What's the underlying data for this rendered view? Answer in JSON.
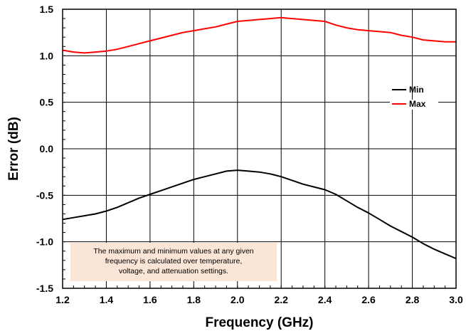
{
  "chart_data": {
    "type": "line",
    "xlabel": "Frequency (GHz)",
    "ylabel": "Error (dB)",
    "xlim": [
      1.2,
      3.0
    ],
    "ylim": [
      -1.5,
      1.5
    ],
    "xticks": [
      "1.2",
      "1.4",
      "1.6",
      "1.8",
      "2.0",
      "2.2",
      "2.4",
      "2.6",
      "2.8",
      "3.0"
    ],
    "yticks": [
      "1.5",
      "1.0",
      "0.5",
      "0.0",
      "-0.5",
      "-1.0",
      "-1.5"
    ],
    "grid": true,
    "legend_position": "right",
    "series": [
      {
        "name": "Min",
        "color": "#000000",
        "x": [
          1.2,
          1.25,
          1.3,
          1.35,
          1.4,
          1.45,
          1.5,
          1.55,
          1.6,
          1.65,
          1.7,
          1.75,
          1.8,
          1.85,
          1.9,
          1.95,
          2.0,
          2.05,
          2.1,
          2.15,
          2.2,
          2.25,
          2.3,
          2.35,
          2.4,
          2.45,
          2.5,
          2.55,
          2.6,
          2.65,
          2.7,
          2.75,
          2.8,
          2.85,
          2.9,
          2.95,
          3.0
        ],
        "y": [
          -0.76,
          -0.74,
          -0.72,
          -0.7,
          -0.67,
          -0.63,
          -0.58,
          -0.53,
          -0.49,
          -0.45,
          -0.41,
          -0.37,
          -0.33,
          -0.3,
          -0.27,
          -0.24,
          -0.23,
          -0.24,
          -0.25,
          -0.27,
          -0.3,
          -0.34,
          -0.38,
          -0.41,
          -0.44,
          -0.49,
          -0.56,
          -0.63,
          -0.69,
          -0.76,
          -0.83,
          -0.89,
          -0.95,
          -1.02,
          -1.08,
          -1.13,
          -1.18
        ]
      },
      {
        "name": "Max",
        "color": "#ff0000",
        "x": [
          1.2,
          1.25,
          1.3,
          1.35,
          1.4,
          1.45,
          1.5,
          1.55,
          1.6,
          1.65,
          1.7,
          1.75,
          1.8,
          1.85,
          1.9,
          1.95,
          2.0,
          2.05,
          2.1,
          2.15,
          2.2,
          2.25,
          2.3,
          2.35,
          2.4,
          2.45,
          2.5,
          2.55,
          2.6,
          2.65,
          2.7,
          2.75,
          2.8,
          2.85,
          2.9,
          2.95,
          3.0
        ],
        "y": [
          1.06,
          1.04,
          1.03,
          1.04,
          1.05,
          1.07,
          1.1,
          1.13,
          1.16,
          1.19,
          1.22,
          1.25,
          1.27,
          1.29,
          1.31,
          1.34,
          1.37,
          1.38,
          1.39,
          1.4,
          1.41,
          1.4,
          1.39,
          1.38,
          1.37,
          1.33,
          1.3,
          1.28,
          1.27,
          1.26,
          1.25,
          1.22,
          1.2,
          1.17,
          1.16,
          1.15,
          1.15
        ]
      }
    ],
    "annotation": {
      "lines": [
        "The maximum and minimum values at any given",
        "frequency is calculated over  temperature,",
        "voltage, and attenuation settings."
      ],
      "background": "#fbe5d6"
    }
  }
}
